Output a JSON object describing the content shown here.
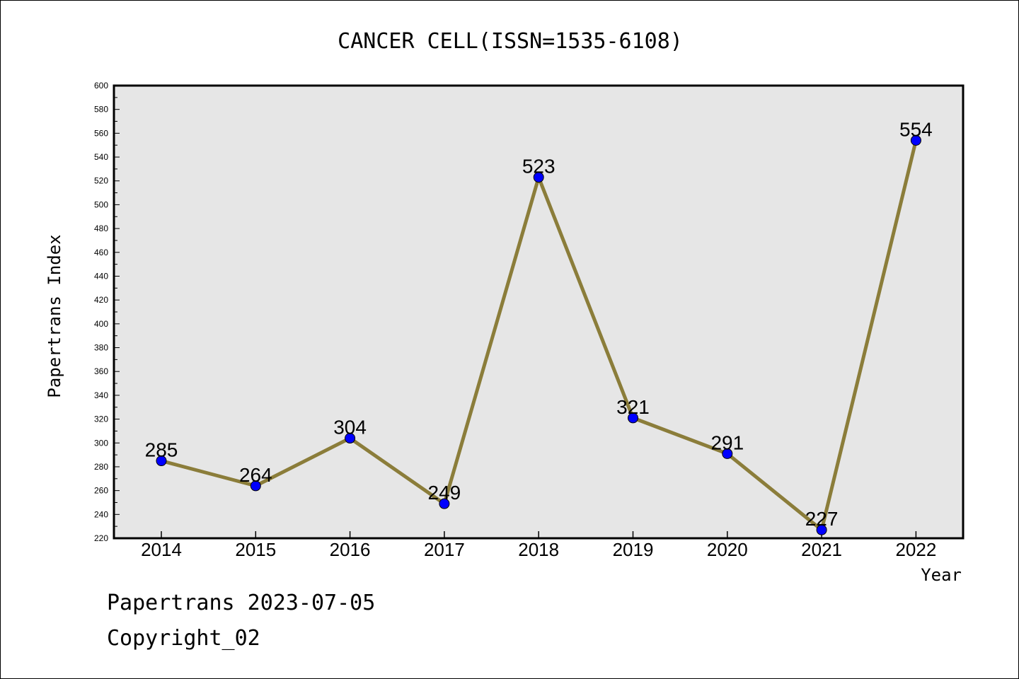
{
  "chart_data": {
    "type": "line",
    "title": "CANCER CELL(ISSN=1535-6108)",
    "xlabel": "Year",
    "ylabel": "Papertrans Index",
    "categories": [
      "2014",
      "2015",
      "2016",
      "2017",
      "2018",
      "2019",
      "2020",
      "2021",
      "2022"
    ],
    "values": [
      285,
      264,
      304,
      249,
      523,
      321,
      291,
      227,
      554
    ],
    "ylim": [
      220,
      600
    ],
    "yticks": [
      220,
      240,
      260,
      280,
      300,
      320,
      340,
      360,
      380,
      400,
      420,
      440,
      460,
      480,
      500,
      520,
      540,
      560,
      580,
      600
    ],
    "grid": false,
    "line_color": "#8b7d3a",
    "marker_color": "#0000ff",
    "plot_background": "#e6e6e6"
  },
  "footer": {
    "line1": "Papertrans 2023-07-05",
    "line2": "Copyright_02"
  }
}
